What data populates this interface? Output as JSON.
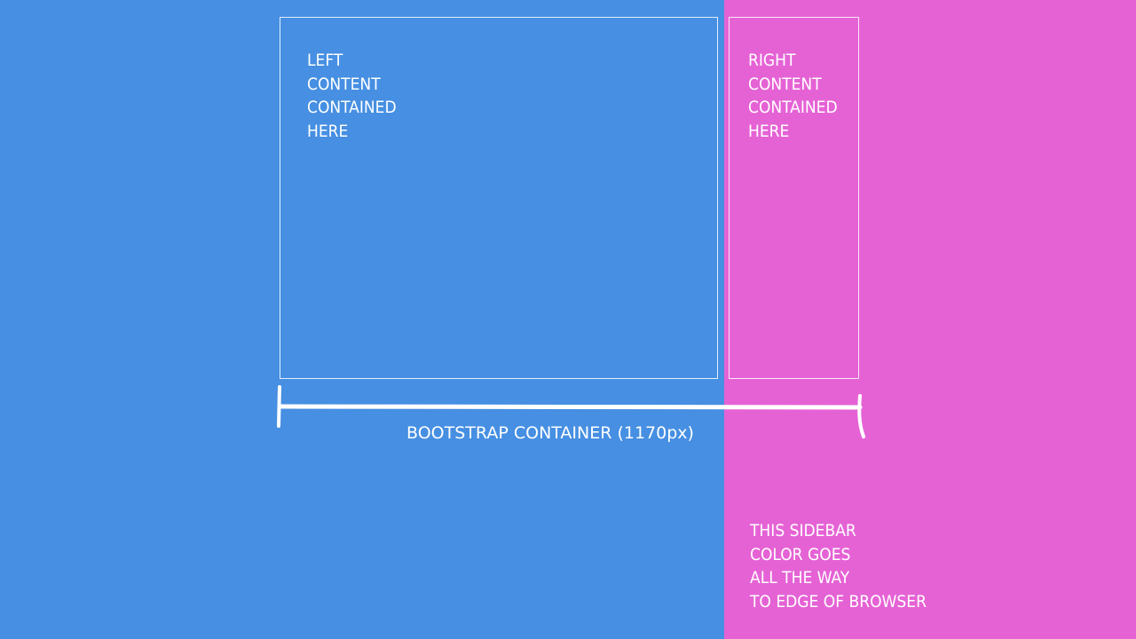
{
  "colors": {
    "left_background": "#468fe2",
    "right_background": "#e562d5",
    "stroke": "#ffffff"
  },
  "left_box": {
    "lines": [
      "LEFT",
      "CONTENT",
      "CONTAINED",
      "HERE"
    ]
  },
  "right_box": {
    "lines": [
      "RIGHT",
      "CONTENT",
      "CONTAINED",
      "HERE"
    ]
  },
  "container_caption": "BOOTSTRAP CONTAINER (1170px)",
  "sidebar_note": {
    "lines": [
      "THIS SIDEBAR",
      "COLOR GOES",
      "ALL THE WAY",
      "TO EDGE OF BROWSER"
    ]
  }
}
